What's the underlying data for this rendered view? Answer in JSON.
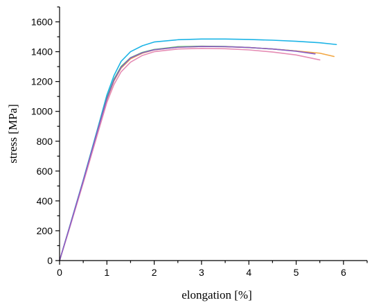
{
  "chart_data": {
    "type": "line",
    "title": "",
    "xlabel": "elongation [%]",
    "ylabel": "stress [MPa]",
    "xlim": [
      0,
      6.5
    ],
    "ylim": [
      0,
      1700
    ],
    "x_ticks": [
      0,
      1,
      2,
      3,
      4,
      5,
      6
    ],
    "y_ticks": [
      0,
      200,
      400,
      600,
      800,
      1000,
      1200,
      1400,
      1600
    ],
    "legend": "none",
    "grid": false,
    "series": [
      {
        "color": "#1cb4e6",
        "points": [
          [
            0,
            0
          ],
          [
            0.2,
            215
          ],
          [
            0.5,
            540
          ],
          [
            0.8,
            880
          ],
          [
            1.0,
            1110
          ],
          [
            1.15,
            1240
          ],
          [
            1.3,
            1335
          ],
          [
            1.5,
            1400
          ],
          [
            1.75,
            1440
          ],
          [
            2.0,
            1465
          ],
          [
            2.5,
            1480
          ],
          [
            3.0,
            1485
          ],
          [
            3.5,
            1485
          ],
          [
            4.0,
            1482
          ],
          [
            4.5,
            1477
          ],
          [
            5.0,
            1470
          ],
          [
            5.5,
            1460
          ],
          [
            5.85,
            1448
          ]
        ]
      },
      {
        "color": "#33d14a",
        "points": [
          [
            0,
            0
          ],
          [
            0.2,
            212
          ],
          [
            0.5,
            535
          ],
          [
            0.8,
            870
          ],
          [
            1.0,
            1090
          ],
          [
            1.15,
            1215
          ],
          [
            1.3,
            1300
          ],
          [
            1.5,
            1360
          ],
          [
            1.75,
            1395
          ],
          [
            2.0,
            1415
          ],
          [
            2.5,
            1433
          ],
          [
            3.0,
            1437
          ],
          [
            3.5,
            1435
          ],
          [
            4.0,
            1428
          ],
          [
            4.5,
            1418
          ],
          [
            5.0,
            1405
          ],
          [
            5.35,
            1390
          ]
        ]
      },
      {
        "color": "#f2a640",
        "points": [
          [
            0,
            0
          ],
          [
            0.2,
            210
          ],
          [
            0.5,
            530
          ],
          [
            0.8,
            860
          ],
          [
            1.0,
            1080
          ],
          [
            1.15,
            1205
          ],
          [
            1.3,
            1290
          ],
          [
            1.5,
            1352
          ],
          [
            1.75,
            1390
          ],
          [
            2.0,
            1412
          ],
          [
            2.5,
            1430
          ],
          [
            3.0,
            1435
          ],
          [
            3.5,
            1434
          ],
          [
            4.0,
            1428
          ],
          [
            4.5,
            1418
          ],
          [
            5.0,
            1405
          ],
          [
            5.5,
            1390
          ],
          [
            5.8,
            1368
          ]
        ]
      },
      {
        "color": "#e58cb4",
        "points": [
          [
            0,
            0
          ],
          [
            0.2,
            205
          ],
          [
            0.5,
            520
          ],
          [
            0.8,
            845
          ],
          [
            1.0,
            1060
          ],
          [
            1.15,
            1180
          ],
          [
            1.3,
            1265
          ],
          [
            1.5,
            1330
          ],
          [
            1.75,
            1375
          ],
          [
            2.0,
            1400
          ],
          [
            2.5,
            1418
          ],
          [
            3.0,
            1422
          ],
          [
            3.5,
            1420
          ],
          [
            4.0,
            1412
          ],
          [
            4.5,
            1398
          ],
          [
            5.0,
            1378
          ],
          [
            5.5,
            1345
          ]
        ]
      },
      {
        "color": "#8a5cc6",
        "points": [
          [
            0,
            0
          ],
          [
            0.2,
            212
          ],
          [
            0.5,
            535
          ],
          [
            0.8,
            868
          ],
          [
            1.0,
            1085
          ],
          [
            1.15,
            1210
          ],
          [
            1.3,
            1295
          ],
          [
            1.5,
            1358
          ],
          [
            1.75,
            1393
          ],
          [
            2.0,
            1413
          ],
          [
            2.5,
            1430
          ],
          [
            3.0,
            1435
          ],
          [
            3.5,
            1434
          ],
          [
            4.0,
            1428
          ],
          [
            4.5,
            1418
          ],
          [
            5.0,
            1403
          ],
          [
            5.4,
            1385
          ]
        ]
      }
    ]
  }
}
